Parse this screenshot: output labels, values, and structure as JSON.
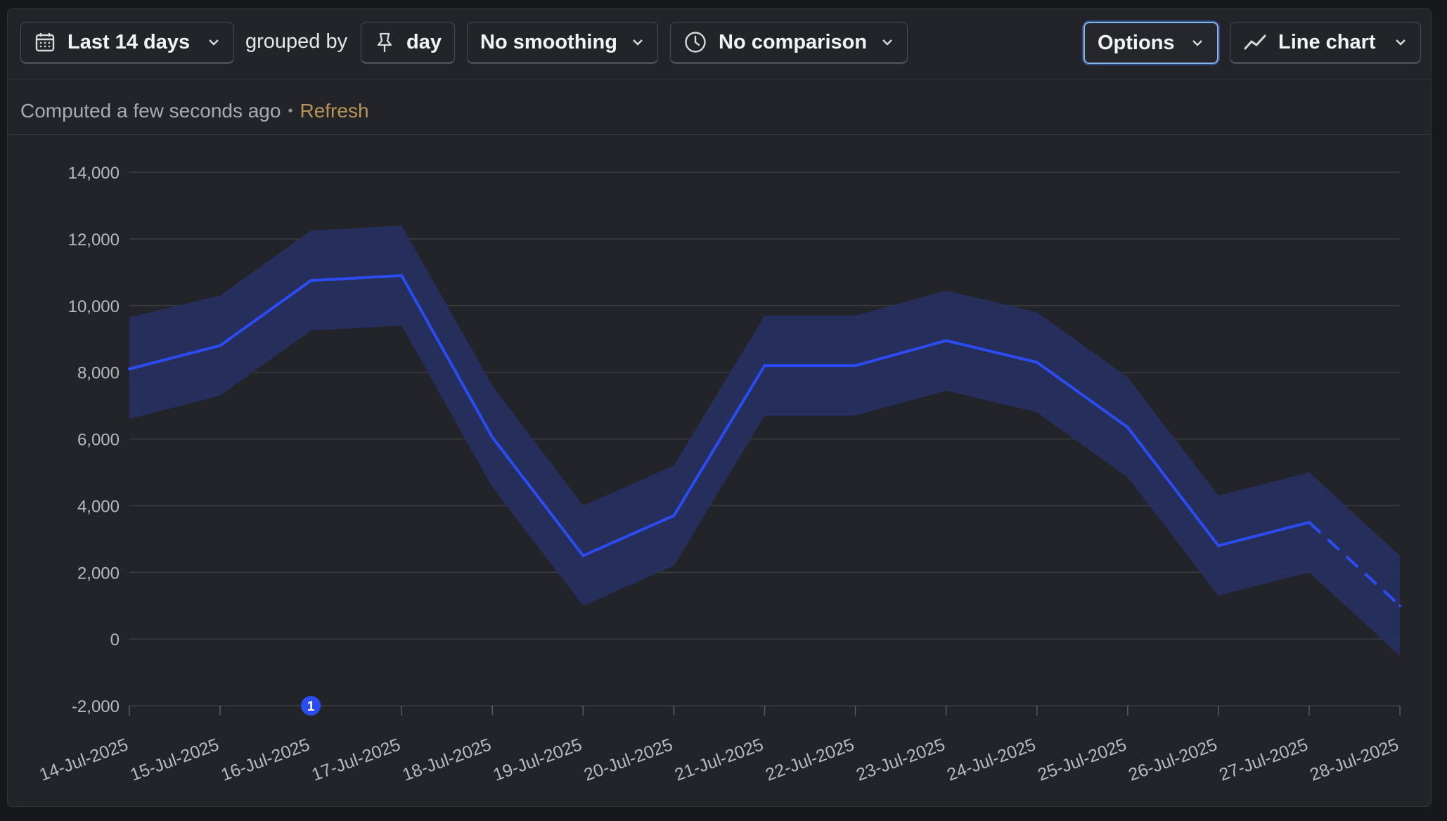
{
  "toolbar": {
    "date_range": "Last 14 days",
    "grouped_by_label": "grouped by",
    "group_interval": "day",
    "smoothing": "No smoothing",
    "comparison": "No comparison",
    "options": "Options",
    "chart_type": "Line chart"
  },
  "status": {
    "computed_text": "Computed a few seconds ago",
    "separator": "•",
    "refresh_label": "Refresh"
  },
  "colors": {
    "line": "#2a4cf2",
    "band": "#27305e",
    "grid": "#3a3c43",
    "tick_text": "#b7b9c0",
    "annotation": "#2a4cf2",
    "options_focus": "#8db4ea",
    "refresh": "#b89553"
  },
  "chart_data": {
    "type": "line",
    "title": "",
    "xlabel": "",
    "ylabel": "",
    "ylim": [
      -2000,
      14000
    ],
    "y_ticks": [
      "-2,000",
      "0",
      "2,000",
      "4,000",
      "6,000",
      "8,000",
      "10,000",
      "12,000",
      "14,000"
    ],
    "y_tick_values": [
      -2000,
      0,
      2000,
      4000,
      6000,
      8000,
      10000,
      12000,
      14000
    ],
    "categories": [
      "14-Jul-2025",
      "15-Jul-2025",
      "16-Jul-2025",
      "17-Jul-2025",
      "18-Jul-2025",
      "19-Jul-2025",
      "20-Jul-2025",
      "21-Jul-2025",
      "22-Jul-2025",
      "23-Jul-2025",
      "24-Jul-2025",
      "25-Jul-2025",
      "26-Jul-2025",
      "27-Jul-2025",
      "28-Jul-2025"
    ],
    "series": [
      {
        "values": [
          8100,
          8800,
          10750,
          10900,
          6050,
          2500,
          3700,
          8200,
          8200,
          8950,
          8300,
          6350,
          2800,
          3500,
          1000
        ],
        "band_upper": [
          9650,
          10300,
          12250,
          12400,
          7600,
          4000,
          5200,
          9700,
          9700,
          10450,
          9800,
          7850,
          4300,
          5000,
          2500
        ],
        "band_lower": [
          6600,
          7300,
          9250,
          9400,
          4550,
          1000,
          2200,
          6700,
          6700,
          7450,
          6800,
          4850,
          1300,
          2000,
          -500
        ],
        "incomplete_from_index": 13
      }
    ],
    "grid": true,
    "legend": "none",
    "annotations": [
      {
        "category": "16-Jul-2025",
        "label": "1"
      }
    ]
  }
}
